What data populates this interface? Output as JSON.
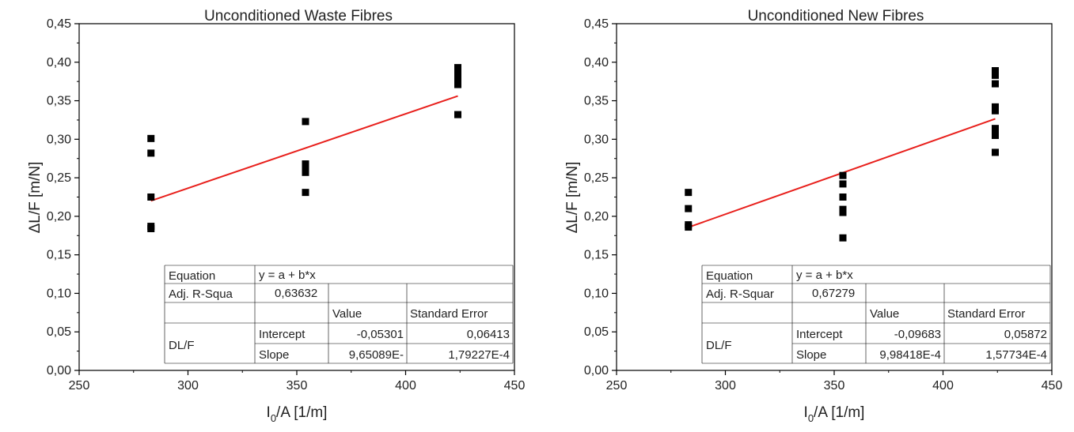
{
  "chart_data": [
    {
      "type": "scatter",
      "title": "Unconditioned Waste Fibres",
      "xlabel_main": "I",
      "xlabel_sub": "0",
      "xlabel_rest": "/A [1/m]",
      "ylabel": "ΔL/F [m/N]",
      "xlim": [
        250,
        450
      ],
      "ylim": [
        0.0,
        0.45
      ],
      "xticks": [
        250,
        300,
        350,
        400,
        450
      ],
      "xtick_labels": [
        "250",
        "300",
        "350",
        "400",
        "450"
      ],
      "yticks": [
        0.0,
        0.05,
        0.1,
        0.15,
        0.2,
        0.25,
        0.3,
        0.35,
        0.4,
        0.45
      ],
      "ytick_labels": [
        "0,00",
        "0,05",
        "0,10",
        "0,15",
        "0,20",
        "0,25",
        "0,30",
        "0,35",
        "0,40",
        "0,45"
      ],
      "grid": false,
      "series": [
        {
          "marker_color": "#000000",
          "points": [
            {
              "x": 283,
              "y": 0.301
            },
            {
              "x": 283,
              "y": 0.282
            },
            {
              "x": 283,
              "y": 0.225
            },
            {
              "x": 283,
              "y": 0.187
            },
            {
              "x": 283,
              "y": 0.184
            },
            {
              "x": 354,
              "y": 0.323
            },
            {
              "x": 354,
              "y": 0.268
            },
            {
              "x": 354,
              "y": 0.263
            },
            {
              "x": 354,
              "y": 0.257
            },
            {
              "x": 354,
              "y": 0.231
            },
            {
              "x": 424,
              "y": 0.393
            },
            {
              "x": 424,
              "y": 0.388
            },
            {
              "x": 424,
              "y": 0.383
            },
            {
              "x": 424,
              "y": 0.378
            },
            {
              "x": 424,
              "y": 0.371
            },
            {
              "x": 424,
              "y": 0.332
            }
          ]
        }
      ],
      "fit_line": {
        "color": "#e8201c",
        "intercept": -0.05301,
        "slope": 0.000965089,
        "x_range": [
          283,
          424
        ]
      },
      "table": {
        "rows": [
          [
            "Equation",
            "y = a + b*x",
            "",
            ""
          ],
          [
            "Adj. R-Squa",
            "0,63632",
            "",
            ""
          ],
          [
            "",
            "",
            "Value",
            "Standard Error"
          ],
          [
            "DL/F",
            "Intercept",
            "-0,05301",
            "0,06413"
          ],
          [
            "",
            "Slope",
            "9,65089E-",
            "1,79227E-4"
          ]
        ]
      }
    },
    {
      "type": "scatter",
      "title": "Unconditioned New Fibres",
      "xlabel_main": "I",
      "xlabel_sub": "0",
      "xlabel_rest": "/A [1/m]",
      "ylabel": "ΔL/F [m/N]",
      "xlim": [
        250,
        450
      ],
      "ylim": [
        0.0,
        0.45
      ],
      "xticks": [
        250,
        300,
        350,
        400,
        450
      ],
      "xtick_labels": [
        "250",
        "300",
        "350",
        "400",
        "450"
      ],
      "yticks": [
        0.0,
        0.05,
        0.1,
        0.15,
        0.2,
        0.25,
        0.3,
        0.35,
        0.4,
        0.45
      ],
      "ytick_labels": [
        "0,00",
        "0,05",
        "0,10",
        "0,15",
        "0,20",
        "0,25",
        "0,30",
        "0,35",
        "0,40",
        "0,45"
      ],
      "grid": false,
      "series": [
        {
          "marker_color": "#000000",
          "points": [
            {
              "x": 283,
              "y": 0.231
            },
            {
              "x": 283,
              "y": 0.21
            },
            {
              "x": 283,
              "y": 0.189
            },
            {
              "x": 283,
              "y": 0.186
            },
            {
              "x": 354,
              "y": 0.253
            },
            {
              "x": 354,
              "y": 0.242
            },
            {
              "x": 354,
              "y": 0.225
            },
            {
              "x": 354,
              "y": 0.209
            },
            {
              "x": 354,
              "y": 0.205
            },
            {
              "x": 354,
              "y": 0.172
            },
            {
              "x": 424,
              "y": 0.389
            },
            {
              "x": 424,
              "y": 0.383
            },
            {
              "x": 424,
              "y": 0.372
            },
            {
              "x": 424,
              "y": 0.342
            },
            {
              "x": 424,
              "y": 0.337
            },
            {
              "x": 424,
              "y": 0.314
            },
            {
              "x": 424,
              "y": 0.31
            },
            {
              "x": 424,
              "y": 0.305
            },
            {
              "x": 424,
              "y": 0.283
            }
          ]
        }
      ],
      "fit_line": {
        "color": "#e8201c",
        "intercept": -0.09683,
        "slope": 0.000998418,
        "x_range": [
          283,
          424
        ]
      },
      "table": {
        "rows": [
          [
            "Equation",
            "y = a + b*x",
            "",
            ""
          ],
          [
            "Adj. R-Squar",
            "0,67279",
            "",
            ""
          ],
          [
            "",
            "",
            "Value",
            "Standard Error"
          ],
          [
            "DL/F",
            "Intercept",
            "-0,09683",
            "0,05872"
          ],
          [
            "",
            "Slope",
            "9,98418E-4",
            "1,57734E-4"
          ]
        ]
      }
    }
  ]
}
